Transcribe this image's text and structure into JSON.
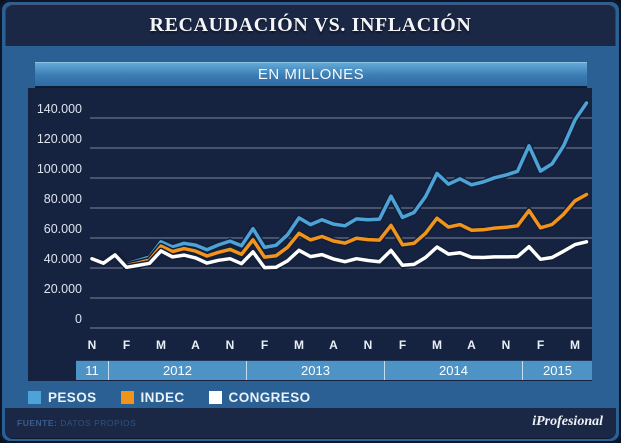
{
  "header": {
    "title": "RECAUDACIÓN VS. INFLACIÓN"
  },
  "chart_header": {
    "subtitle": "EN MILLONES"
  },
  "footer": {
    "source_label": "FUENTE:",
    "source_value": "DATOS PROPIOS",
    "brand": "iProfesional"
  },
  "colors": {
    "frame_blue": "#2A6093",
    "band_navy": "#1B2845",
    "panel_navy": "#162340",
    "gridline": "#9aa5b8",
    "year_band": "#4e93c6",
    "pesos": "#4DA3D8",
    "indec": "#F2941C",
    "congreso": "#FFFFFF"
  },
  "chart_data": {
    "type": "line",
    "title": "RECAUDACIÓN VS. INFLACIÓN",
    "subtitle": "EN MILLONES",
    "unit": "millones de pesos",
    "x_start": "Nov 2011",
    "x_end": "Jun 2015",
    "x_interval": "monthly",
    "x_tick_labels": [
      "N",
      "F",
      "M",
      "A",
      "N",
      "F",
      "M",
      "A",
      "N",
      "F",
      "M",
      "A",
      "N",
      "F",
      "M"
    ],
    "year_band_labels": [
      "11",
      "2012",
      "2013",
      "2014",
      "2015"
    ],
    "y_tick_labels": [
      "140.000",
      "120.000",
      "100.000",
      "80.000",
      "60.000",
      "40.000",
      "20.000",
      "0"
    ],
    "ylim": [
      0,
      150000
    ],
    "grid": true,
    "legend_position": "bottom-left",
    "series": [
      {
        "name": "PESOS",
        "color": "#4DA3D8",
        "values": [
          46100,
          44000,
          50500,
          42800,
          45000,
          47300,
          57500,
          54000,
          56500,
          55300,
          52200,
          55400,
          57900,
          54800,
          66200,
          53700,
          55100,
          62100,
          73400,
          68900,
          72200,
          69300,
          68100,
          72700,
          72200,
          72600,
          87900,
          73700,
          77000,
          87600,
          103000,
          95900,
          99500,
          95500,
          97300,
          100100,
          102000,
          104500,
          121500,
          104600,
          109400,
          121300,
          138700,
          150000
        ]
      },
      {
        "name": "INDEC",
        "color": "#F2941C",
        "values": [
          46100,
          43600,
          49600,
          41700,
          43400,
          45300,
          54600,
          50900,
          52900,
          51300,
          48000,
          50500,
          52400,
          49100,
          58700,
          47300,
          48100,
          53800,
          63100,
          58700,
          61000,
          58000,
          56600,
          59800,
          58900,
          58600,
          68400,
          55500,
          56500,
          63100,
          73200,
          67300,
          68900,
          65200,
          65500,
          66600,
          67100,
          68100,
          78300,
          66800,
          69000,
          75800,
          84800,
          89000
        ]
      },
      {
        "name": "CONGRESO",
        "color": "#FFFFFF",
        "values": [
          46100,
          43200,
          48700,
          40500,
          41700,
          43100,
          51400,
          47400,
          48600,
          46700,
          43300,
          45100,
          46200,
          42900,
          50700,
          40300,
          40500,
          44700,
          51800,
          47600,
          48900,
          46000,
          44200,
          46200,
          45000,
          44200,
          51700,
          41800,
          42400,
          47000,
          54000,
          49300,
          50100,
          47100,
          47000,
          47400,
          47400,
          47600,
          54200,
          45800,
          47000,
          51100,
          55600,
          57500
        ]
      }
    ]
  }
}
